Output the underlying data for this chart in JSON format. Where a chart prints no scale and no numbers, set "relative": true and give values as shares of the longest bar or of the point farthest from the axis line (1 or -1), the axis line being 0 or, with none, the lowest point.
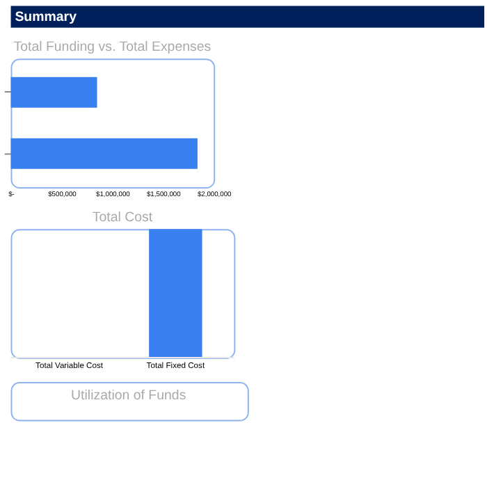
{
  "chart_data": [
    {
      "type": "other",
      "title": "Summary"
    },
    {
      "type": "bar",
      "title": "Total Funding vs. Total Expenses",
      "orientation": "horizontal",
      "categories": [
        null,
        null
      ],
      "values": [
        850000,
        1840000
      ],
      "color": "#3a7ff0",
      "xlim": [
        0,
        2000000
      ],
      "xticks": [
        {
          "value": 0,
          "label": "$-"
        },
        {
          "value": 500000,
          "label": "$500,000"
        },
        {
          "value": 1000000,
          "label": "$1,000,000"
        },
        {
          "value": 1500000,
          "label": "$1,500,000"
        },
        {
          "value": 2000000,
          "label": "$2,000,000"
        }
      ],
      "grid": false
    },
    {
      "type": "bar",
      "title": "Total Cost",
      "relative": true,
      "categories": [
        "Total Variable Cost",
        "Total Fixed Cost"
      ],
      "values": [
        0,
        1
      ],
      "color": "#3a7ff0",
      "grid": false
    },
    {
      "type": "other",
      "title": "Utilization of Funds"
    }
  ]
}
